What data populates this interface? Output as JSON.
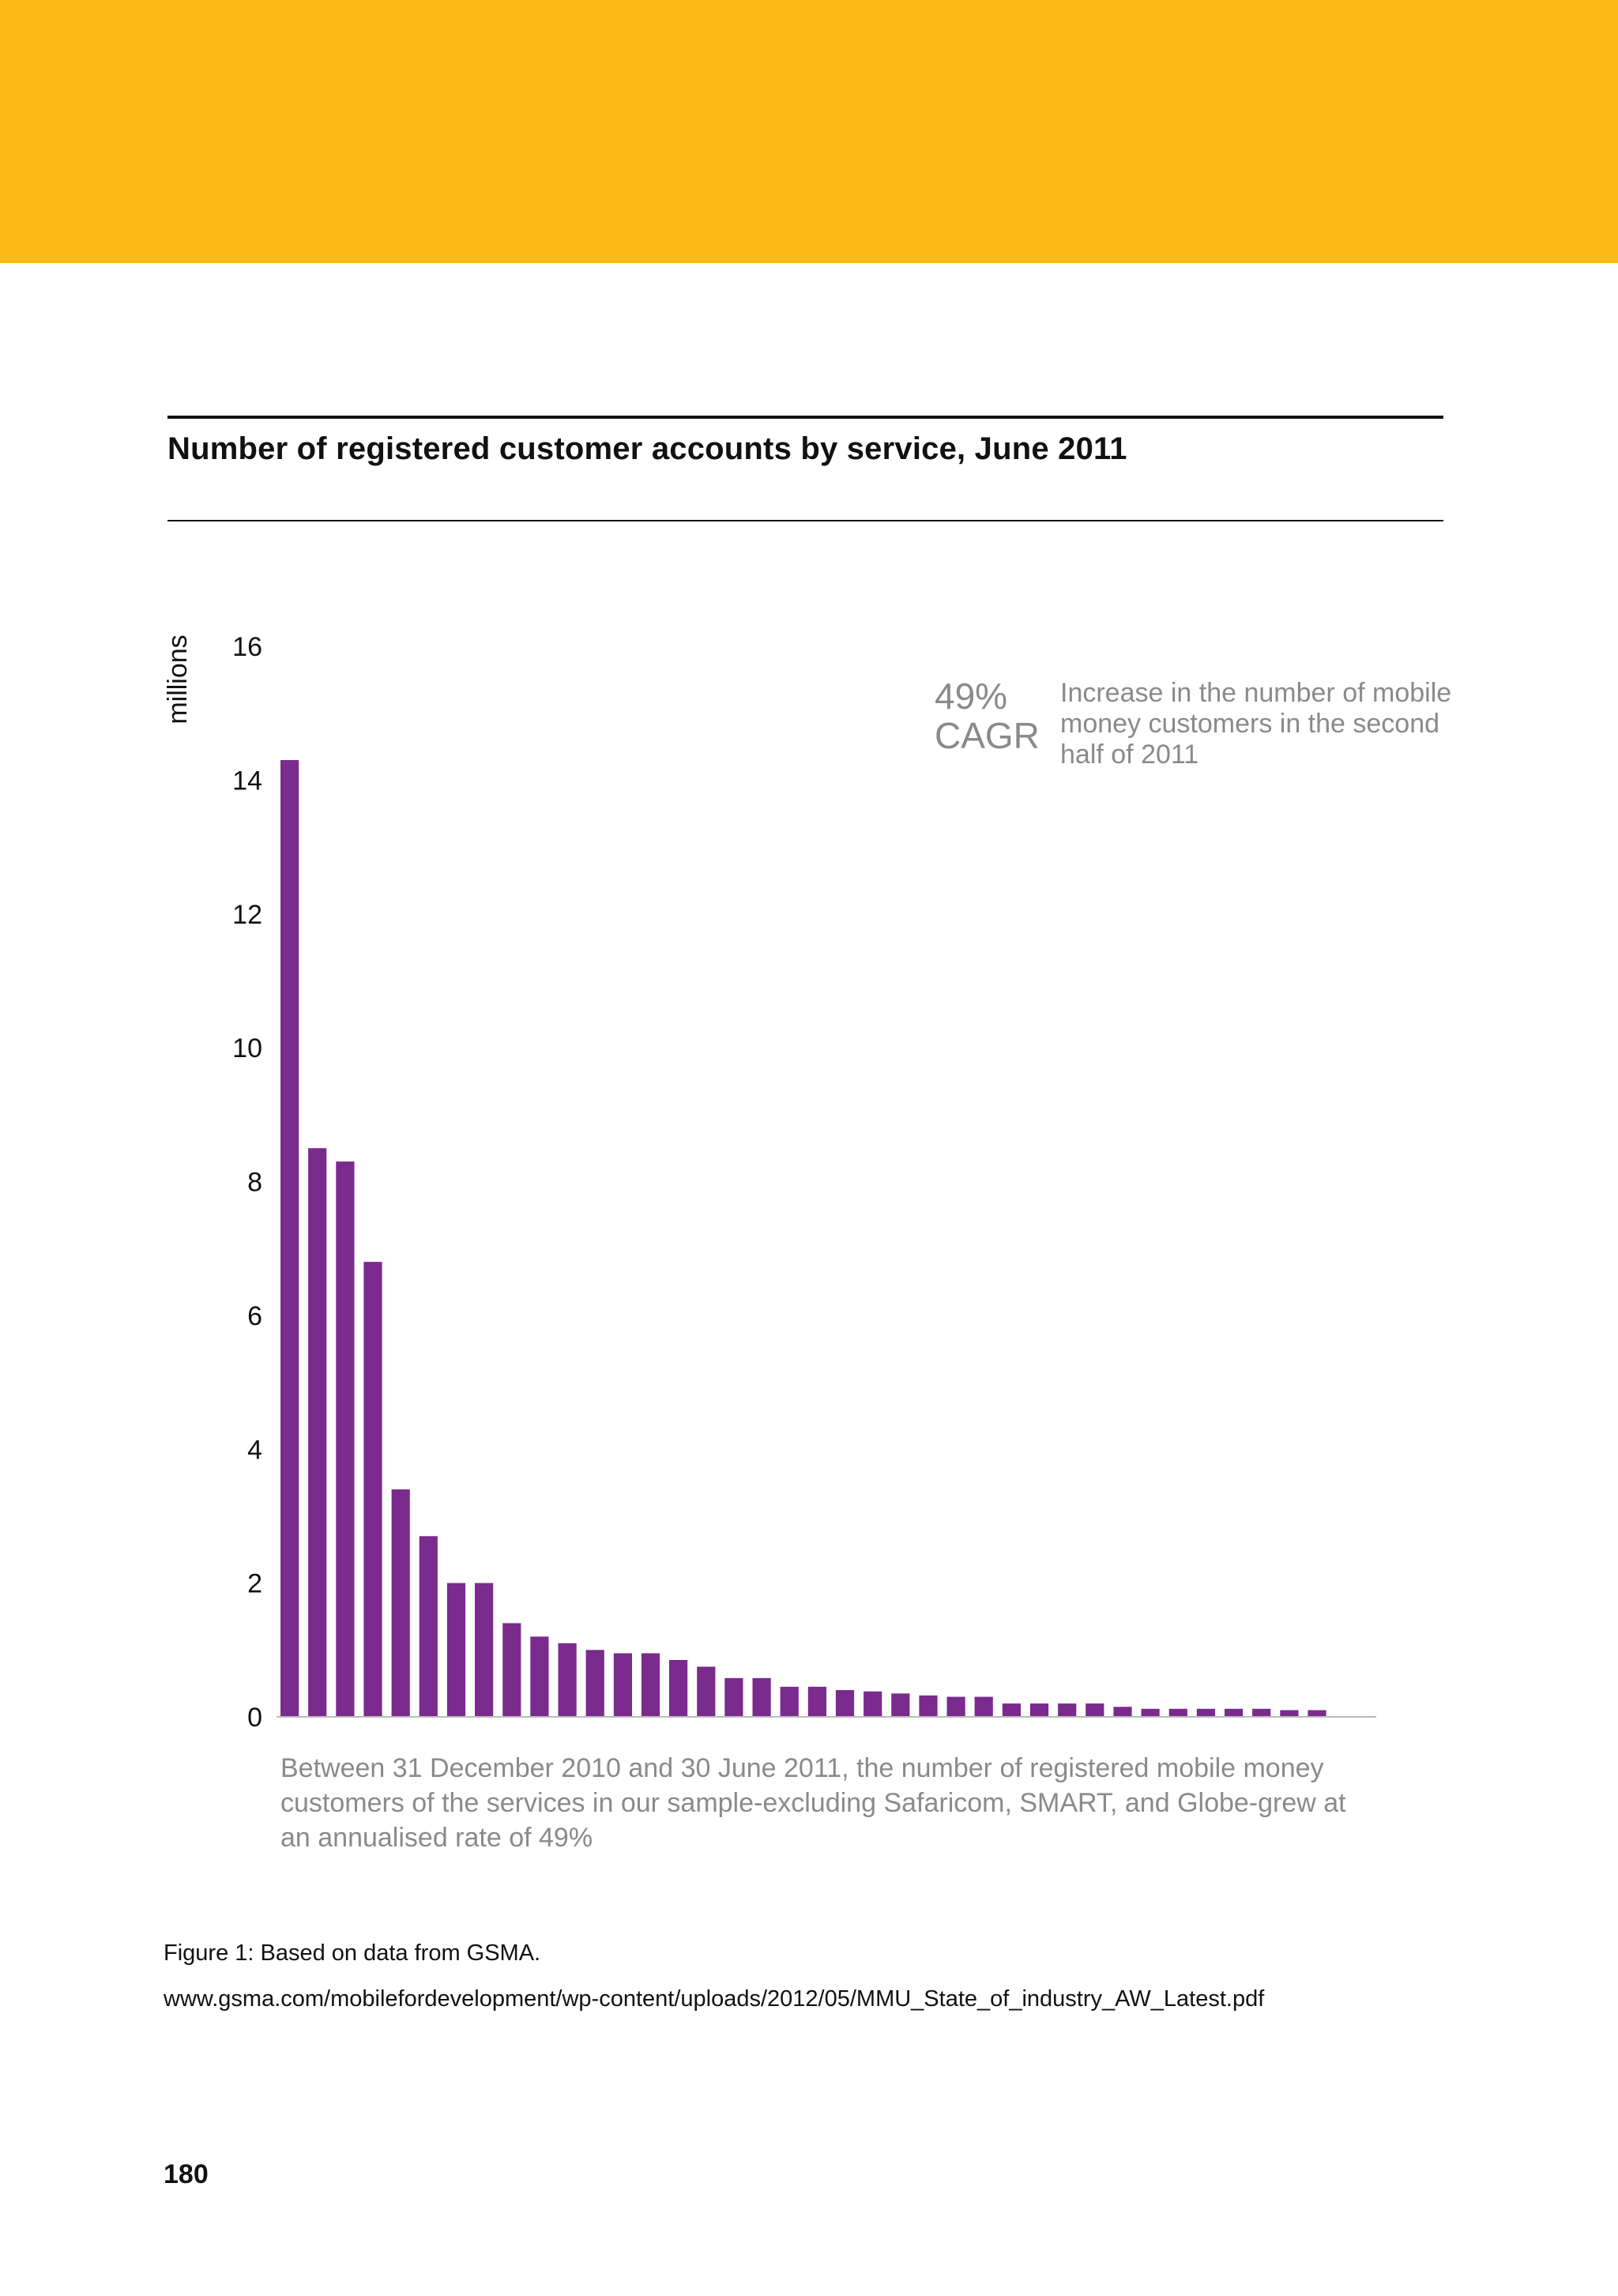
{
  "page": {
    "banner_color": "#fdb918",
    "title": "Number of registered customer accounts by service, June 2011",
    "annotation": {
      "value_line1": "49%",
      "value_line2": "CAGR",
      "text": "Increase in the number of mobile money customers in the second half of 2011"
    },
    "note": "Between 31 December 2010 and 30 June 2011, the number of registered mobile money customers of the services in our sample-excluding Safaricom, SMART, and Globe-grew at an annualised rate of 49%",
    "source_caption": "Figure 1: Based on data from GSMA.",
    "source_url": "www.gsma.com/mobilefordevelopment/wp-content/uploads/2012/05/MMU_State_of_industry_AW_Latest.pdf",
    "page_number": "180"
  },
  "chart_data": {
    "type": "bar",
    "title": "Number of registered customer accounts by service, June 2011",
    "xlabel": "",
    "ylabel": "millions",
    "ylim": [
      0,
      16
    ],
    "yticks": [
      0,
      2,
      4,
      6,
      8,
      10,
      12,
      14,
      16
    ],
    "grid": false,
    "bar_color": "#7b2a8e",
    "values": [
      14.3,
      8.5,
      8.3,
      6.8,
      3.4,
      2.7,
      2.0,
      2.0,
      1.4,
      1.2,
      1.1,
      1.0,
      0.95,
      0.95,
      0.85,
      0.75,
      0.58,
      0.58,
      0.45,
      0.45,
      0.4,
      0.38,
      0.35,
      0.32,
      0.3,
      0.3,
      0.2,
      0.2,
      0.2,
      0.2,
      0.15,
      0.12,
      0.12,
      0.12,
      0.12,
      0.12,
      0.1,
      0.1
    ]
  }
}
